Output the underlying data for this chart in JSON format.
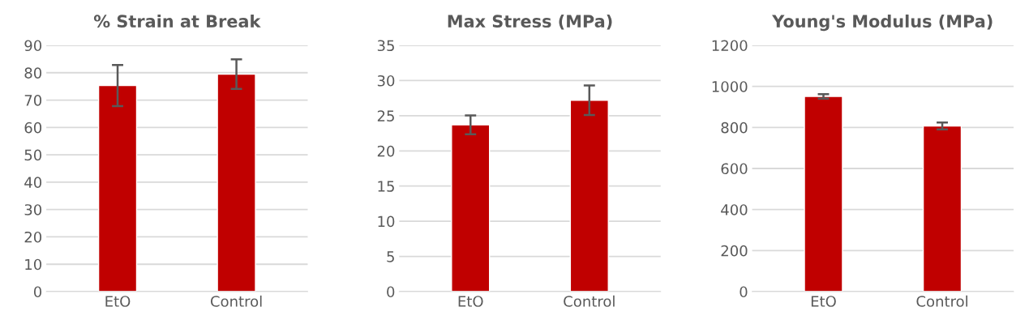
{
  "chart_data": [
    {
      "type": "bar",
      "title": "% Strain at Break",
      "categories": [
        "EtO",
        "Control"
      ],
      "values": [
        75.3,
        79.5
      ],
      "errors": [
        7.5,
        5.4
      ],
      "color": "#c00000",
      "ylim": [
        0,
        90
      ],
      "yticks": [
        0,
        10,
        20,
        30,
        40,
        50,
        60,
        70,
        80,
        90
      ],
      "grid": "y"
    },
    {
      "type": "bar",
      "title": "Max Stress (MPa)",
      "categories": [
        "EtO",
        "Control"
      ],
      "values": [
        23.7,
        27.2
      ],
      "errors": [
        1.35,
        2.1
      ],
      "color": "#c00000",
      "ylim": [
        0,
        35
      ],
      "yticks": [
        0,
        5,
        10,
        15,
        20,
        25,
        30,
        35
      ],
      "grid": "y"
    },
    {
      "type": "bar",
      "title": "Young's Modulus (MPa)",
      "categories": [
        "EtO",
        "Control"
      ],
      "values": [
        951,
        807
      ],
      "errors": [
        11,
        17
      ],
      "color": "#c00000",
      "ylim": [
        0,
        1200
      ],
      "yticks": [
        0,
        200,
        400,
        600,
        800,
        1000,
        1200
      ],
      "grid": "y"
    }
  ]
}
